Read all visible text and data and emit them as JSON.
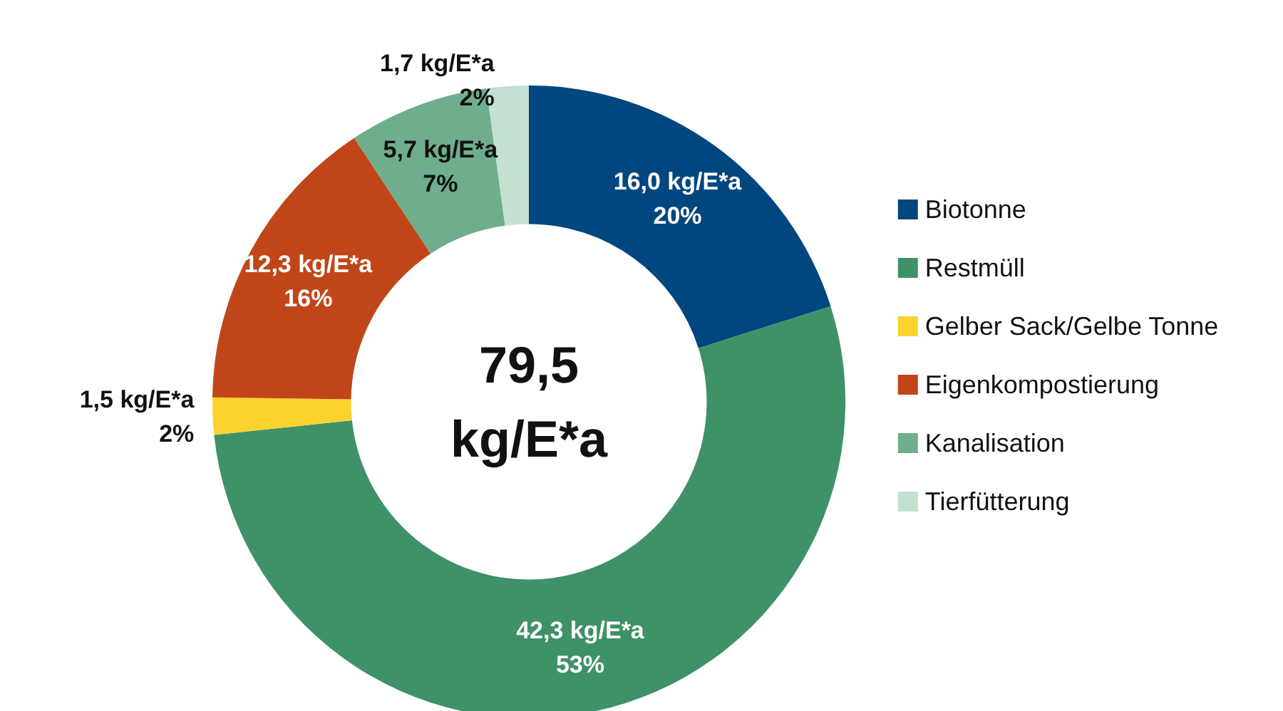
{
  "chart_data": {
    "type": "donut",
    "categories": [
      "Biotonne",
      "Restmüll",
      "Gelber Sack/Gelbe Tonne",
      "Eigenkompostierung",
      "Kanalisation",
      "Tierfütterung"
    ],
    "values": [
      16.0,
      42.3,
      1.5,
      12.3,
      5.7,
      1.7
    ],
    "colors": [
      "#00467f",
      "#3f9167",
      "#fcd22c",
      "#c0461a",
      "#6fae8d",
      "#c4e0d0"
    ],
    "value_labels": [
      "16,0 kg/E*a\n20%",
      "42,3 kg/E*a\n53%",
      "1,5 kg/E*a\n2%",
      "12,3 kg/E*a\n16%",
      "5,7 kg/E*a\n7%",
      "1,7 kg/E*a\n2%"
    ],
    "annotations": [
      "79,5\nkg/E*a"
    ],
    "legend": "right"
  }
}
